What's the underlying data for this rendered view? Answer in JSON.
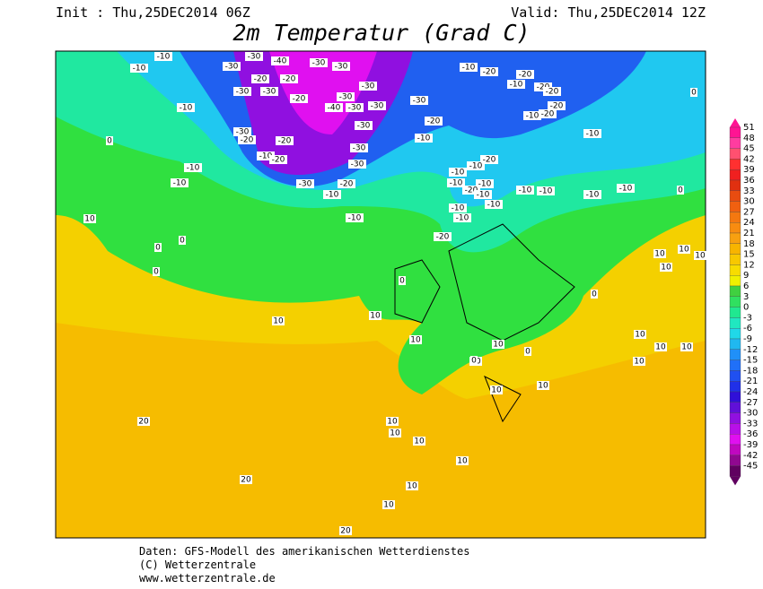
{
  "header": {
    "init": "Init : Thu,25DEC2014 06Z",
    "valid": "Valid: Thu,25DEC2014 12Z",
    "title": "2m Temperatur (Grad C)"
  },
  "colorbar": {
    "levels": [
      51,
      48,
      45,
      42,
      39,
      36,
      33,
      30,
      27,
      24,
      21,
      18,
      15,
      12,
      9,
      6,
      3,
      0,
      -3,
      -6,
      -9,
      -12,
      -15,
      -18,
      -21,
      -24,
      -27,
      -30,
      -33,
      -36,
      -39,
      -42,
      -45
    ],
    "colors": [
      "#ff1493",
      "#ff3ca0",
      "#ff5070",
      "#ff3030",
      "#f02020",
      "#e03010",
      "#e84c10",
      "#f06010",
      "#f47810",
      "#f88c10",
      "#f8a010",
      "#f8b400",
      "#f8c800",
      "#f8dc00",
      "#f0f000",
      "#40d040",
      "#30e060",
      "#20e890",
      "#20e8c0",
      "#20d8e8",
      "#20b8f0",
      "#2090f8",
      "#2070f8",
      "#2050f0",
      "#2030e8",
      "#3010d8",
      "#6010d8",
      "#9010e0",
      "#b810e8",
      "#e010f0",
      "#c008c0",
      "#900890",
      "#600060"
    ]
  },
  "map_labels": [
    -10,
    -10,
    -30,
    -30,
    -40,
    -30,
    -30,
    -20,
    -20,
    -30,
    -30,
    -20,
    -30,
    -30,
    -40,
    -30,
    -30,
    -30,
    -30,
    -20,
    -10,
    -10,
    -30,
    -20,
    -20,
    -10,
    -20,
    -30,
    -30,
    -10,
    -10,
    -30,
    -20,
    -10,
    -10,
    -10,
    -20,
    -10,
    -20,
    -20,
    -20,
    0,
    -20,
    -10,
    -20,
    -10,
    -20,
    -10,
    -10,
    -10,
    -10,
    -20,
    -10,
    -10,
    -10,
    -10,
    -10,
    -10,
    -10,
    -10,
    0,
    -20,
    0,
    10,
    0,
    0,
    0,
    10,
    10,
    10,
    10,
    0,
    10,
    10,
    10,
    10,
    10,
    10,
    10,
    10,
    20,
    20,
    20,
    10,
    10,
    10,
    10,
    10,
    10,
    10,
    10,
    10,
    0,
    0,
    0
  ],
  "footer": [
    "Daten: GFS-Modell des amerikanischen Wetterdienstes",
    "(C) Wetterzentrale",
    "www.wetterzentrale.de"
  ]
}
